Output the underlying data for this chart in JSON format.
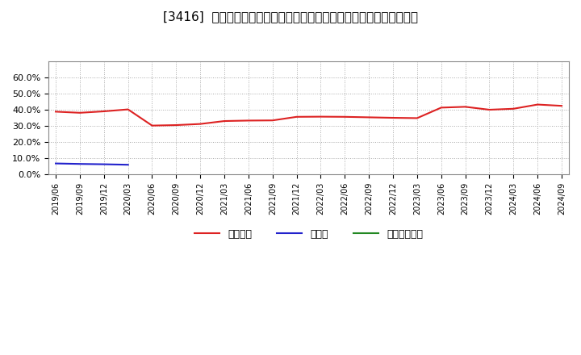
{
  "title": "[3416]  自己資本、のれん、繰延税金資産の総資産に対する比率の推移",
  "x_labels": [
    "2019/06",
    "2019/09",
    "2019/12",
    "2020/03",
    "2020/06",
    "2020/09",
    "2020/12",
    "2021/03",
    "2021/06",
    "2021/09",
    "2021/12",
    "2022/03",
    "2022/06",
    "2022/09",
    "2022/12",
    "2023/03",
    "2023/06",
    "2023/09",
    "2023/12",
    "2024/03",
    "2024/06",
    "2024/09"
  ],
  "equity": [
    0.388,
    0.381,
    0.39,
    0.402,
    0.302,
    0.305,
    0.312,
    0.33,
    0.333,
    0.334,
    0.356,
    0.357,
    0.356,
    0.353,
    0.35,
    0.348,
    0.413,
    0.418,
    0.4,
    0.406,
    0.432,
    0.424
  ],
  "goodwill": [
    0.068,
    0.065,
    0.063,
    0.06,
    null,
    null,
    null,
    null,
    null,
    null,
    null,
    null,
    null,
    null,
    null,
    null,
    null,
    null,
    null,
    null,
    null,
    null
  ],
  "deferred_tax": [
    null,
    null,
    null,
    null,
    null,
    null,
    null,
    null,
    null,
    null,
    null,
    null,
    null,
    null,
    null,
    null,
    null,
    null,
    null,
    null,
    null,
    null
  ],
  "equity_color": "#dd2222",
  "goodwill_color": "#2222cc",
  "deferred_tax_color": "#228822",
  "equity_label": "自己資本",
  "goodwill_label": "のれん",
  "deferred_tax_label": "繰延税金資産",
  "ylim": [
    0.0,
    0.7
  ],
  "yticks": [
    0.0,
    0.1,
    0.2,
    0.3,
    0.4,
    0.5,
    0.6
  ],
  "bg_color": "#ffffff",
  "plot_bg_color": "#ffffff",
  "grid_color": "#aaaaaa",
  "title_fontsize": 11
}
